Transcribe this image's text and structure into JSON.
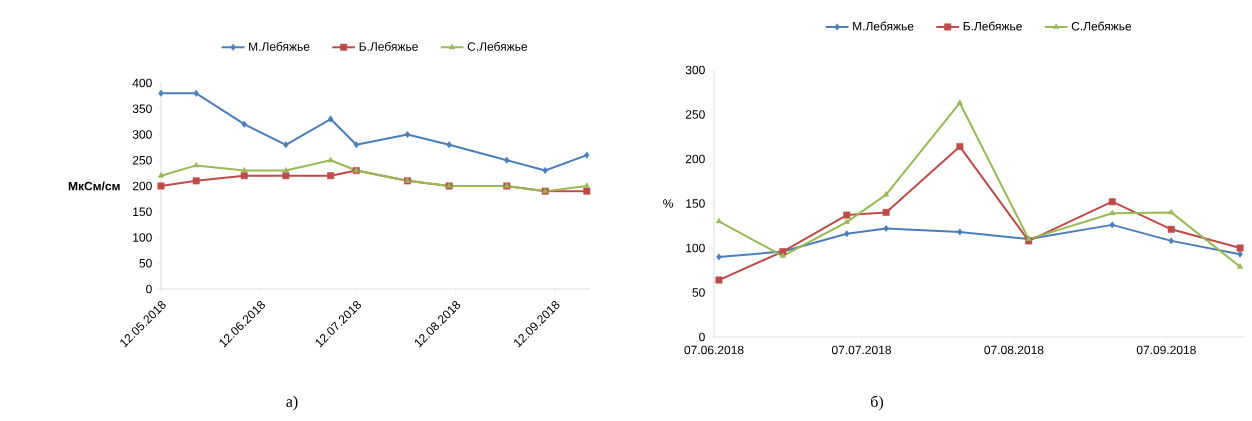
{
  "chart_data": [
    {
      "type": "line",
      "ylabel": "МкСм/см",
      "legend": "top",
      "annotations": [
        "а)"
      ],
      "x": [
        "2018-05-12",
        "2018-05-23",
        "2018-06-07",
        "2018-06-20",
        "2018-07-04",
        "2018-07-12",
        "2018-07-28",
        "2018-08-10",
        "2018-08-28",
        "2018-09-09",
        "2018-09-22"
      ],
      "xlim": [
        "2018-05-12",
        "2018-09-23"
      ],
      "xticks": [
        {
          "value": "2018-05-12",
          "label": "12.05.2018"
        },
        {
          "value": "2018-06-12",
          "label": "12.06.2018"
        },
        {
          "value": "2018-07-12",
          "label": "12.07.2018"
        },
        {
          "value": "2018-08-12",
          "label": "12.08.2018"
        },
        {
          "value": "2018-09-12",
          "label": "12.09.2018"
        }
      ],
      "ylim": [
        0,
        400
      ],
      "yticks": [
        0,
        50,
        100,
        150,
        200,
        250,
        300,
        350,
        400
      ],
      "series": [
        {
          "name": "М.Лебяжье",
          "color": "#4a7ebb",
          "marker": "diamond",
          "values": [
            380,
            380,
            320,
            280,
            330,
            280,
            300,
            280,
            250,
            230,
            260
          ]
        },
        {
          "name": "Б.Лебяжье",
          "color": "#be4b48",
          "marker": "square",
          "values": [
            200,
            210,
            220,
            220,
            220,
            230,
            210,
            200,
            200,
            190,
            190
          ]
        },
        {
          "name": "С.Лебяжье",
          "color": "#98b954",
          "marker": "triangle",
          "values": [
            220,
            240,
            230,
            230,
            250,
            230,
            210,
            200,
            200,
            190,
            200
          ]
        }
      ]
    },
    {
      "type": "line",
      "ylabel": "%",
      "legend": "top",
      "annotations": [
        "б)"
      ],
      "x": [
        "2018-06-08",
        "2018-06-21",
        "2018-07-04",
        "2018-07-12",
        "2018-07-27",
        "2018-08-10",
        "2018-08-27",
        "2018-09-08",
        "2018-09-22"
      ],
      "xlim": [
        "2018-06-07",
        "2018-09-23"
      ],
      "xticks": [
        {
          "value": "2018-06-07",
          "label": "07.06.2018"
        },
        {
          "value": "2018-07-07",
          "label": "07.07.2018"
        },
        {
          "value": "2018-08-07",
          "label": "07.08.2018"
        },
        {
          "value": "2018-09-07",
          "label": "07.09.2018"
        }
      ],
      "ylim": [
        0,
        300
      ],
      "yticks": [
        0,
        50,
        100,
        150,
        200,
        250,
        300
      ],
      "series": [
        {
          "name": "М.Лебяжье",
          "color": "#4a7ebb",
          "marker": "diamond",
          "values": [
            90,
            96,
            116,
            122,
            118,
            110,
            126,
            108,
            93
          ]
        },
        {
          "name": "Б.Лебяжье",
          "color": "#be4b48",
          "marker": "square",
          "values": [
            64,
            96,
            137,
            140,
            214,
            108,
            152,
            121,
            100
          ]
        },
        {
          "name": "С.Лебяжье",
          "color": "#98b954",
          "marker": "triangle",
          "values": [
            130,
            91,
            129,
            160,
            263,
            110,
            139,
            140,
            79
          ]
        }
      ]
    }
  ]
}
